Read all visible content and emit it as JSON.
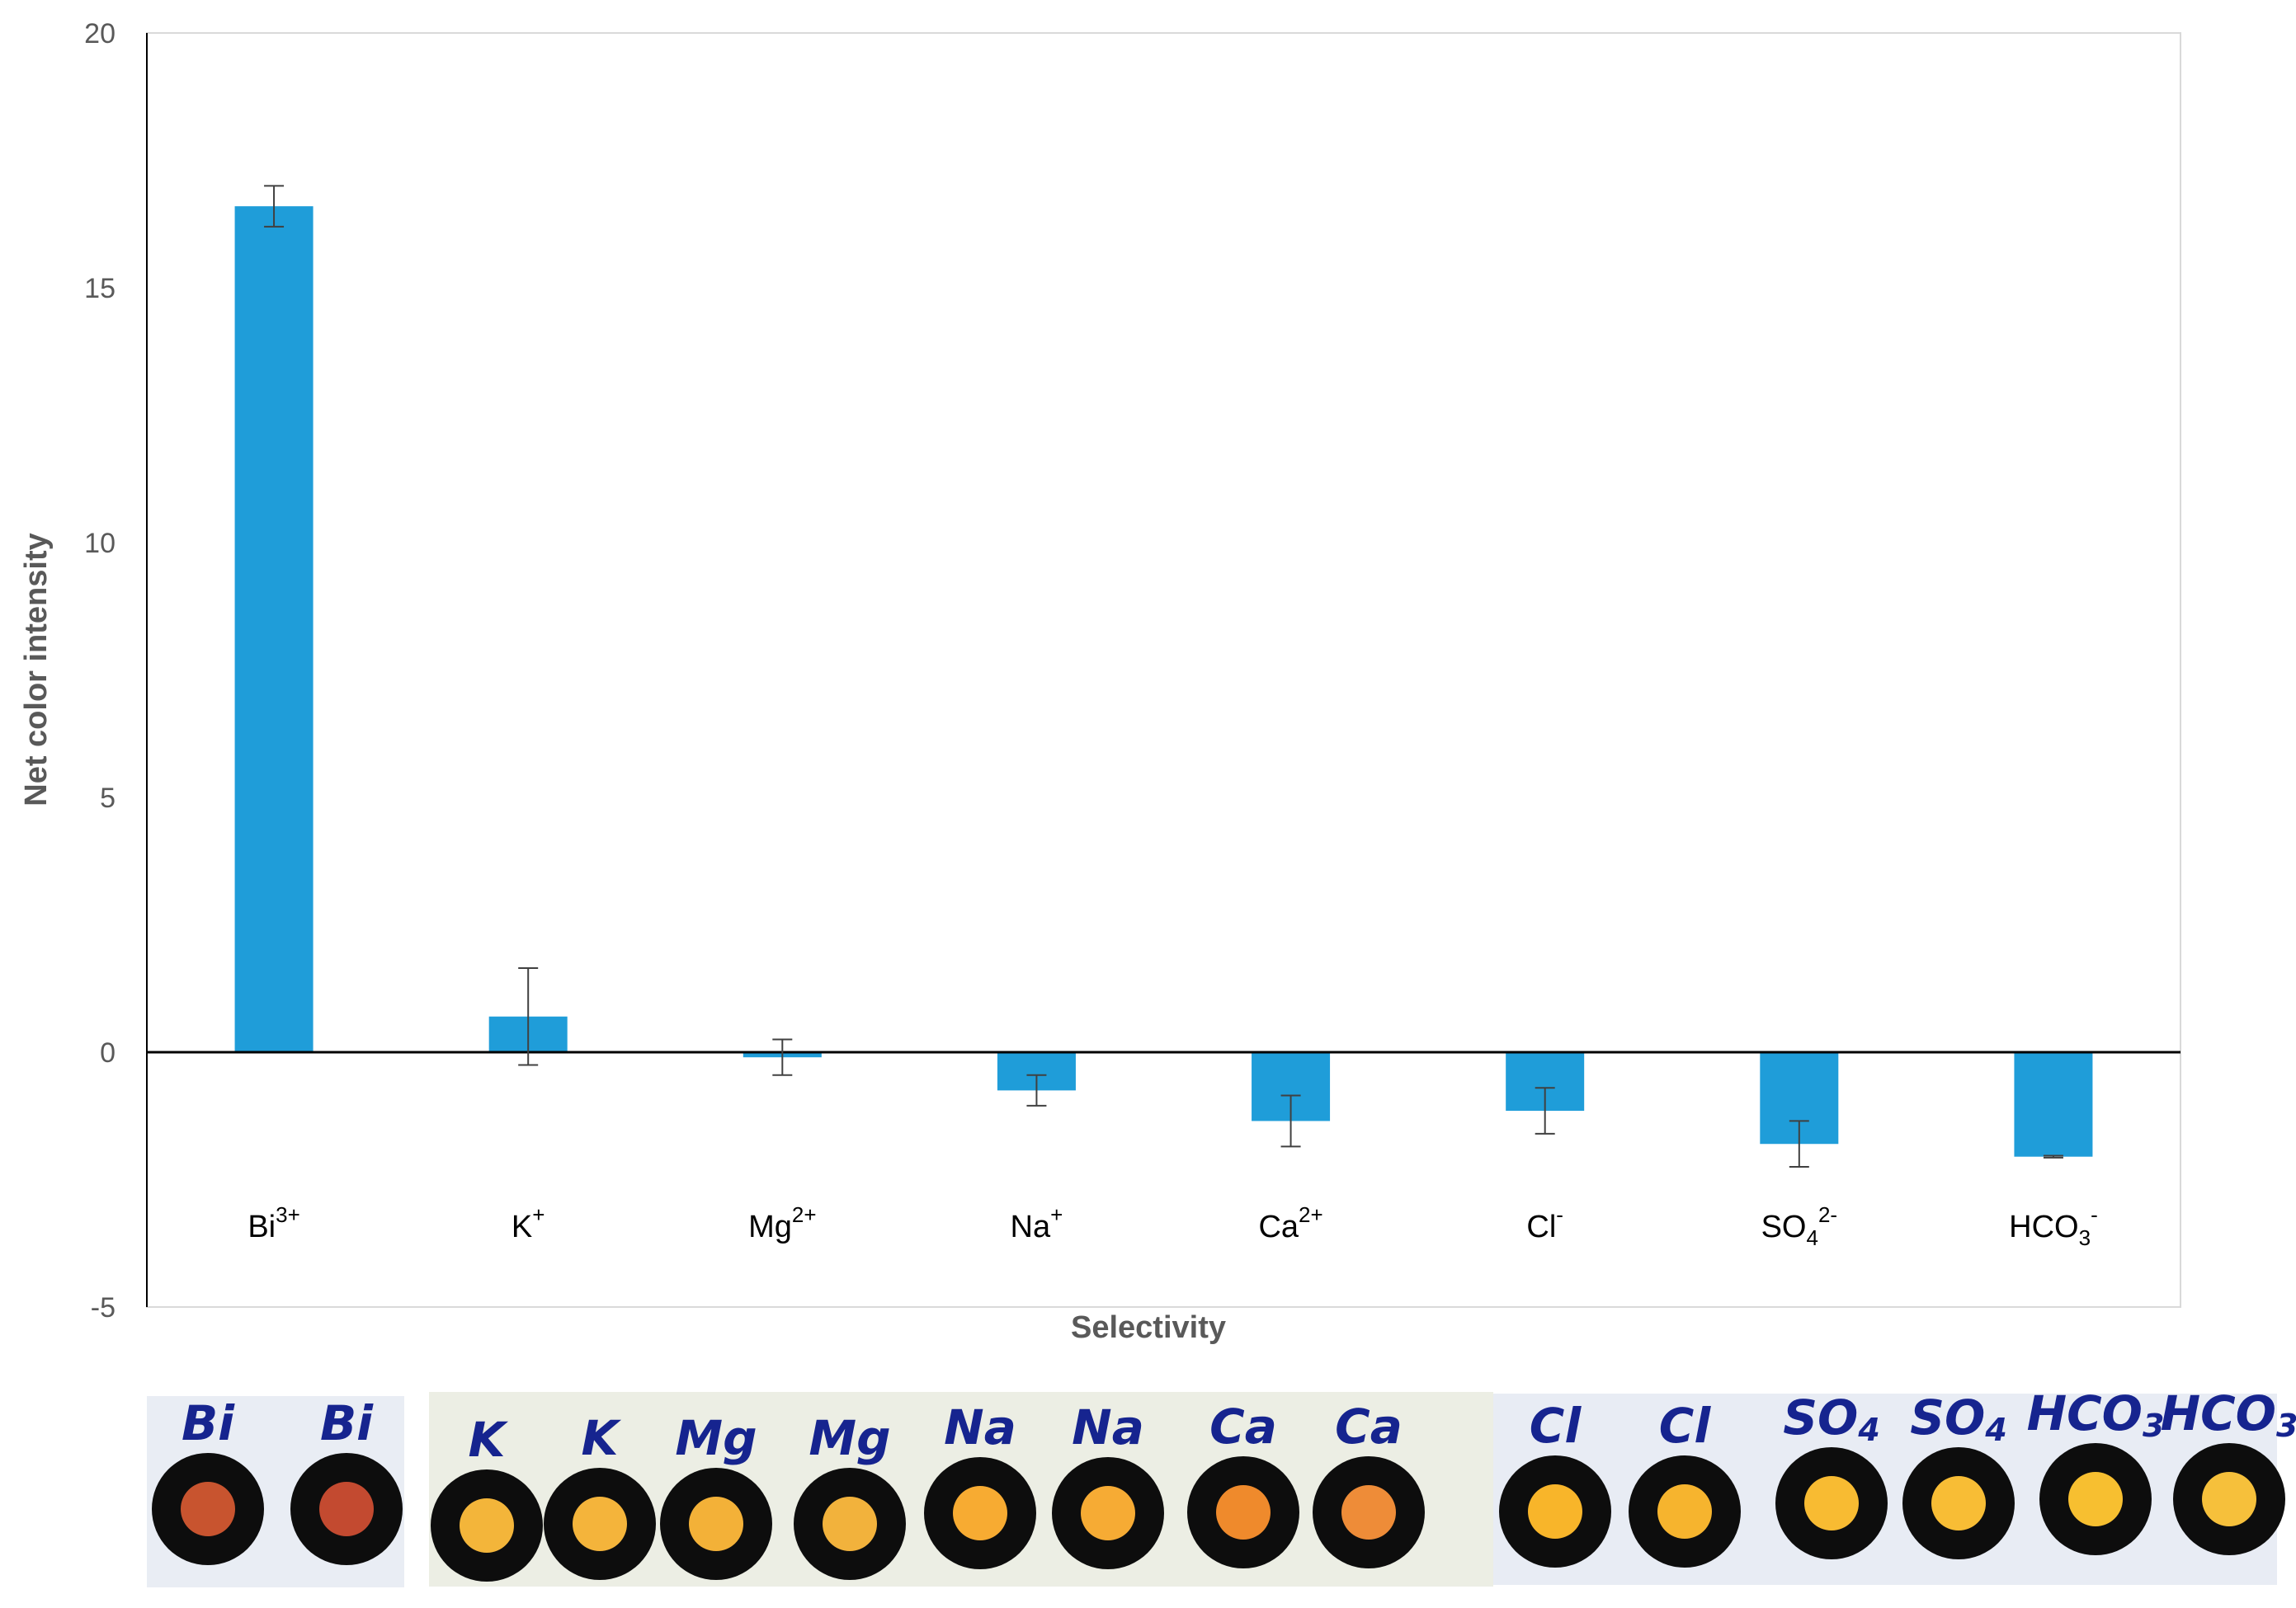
{
  "chart_data": {
    "type": "bar",
    "title": "",
    "xlabel": "Selectivity",
    "ylabel": "Net color intensity",
    "ylim": [
      -5,
      20
    ],
    "yticks": [
      -5,
      0,
      5,
      10,
      15,
      20
    ],
    "grid": false,
    "legend": "none",
    "bar_color": "#1f9dd9",
    "categories": [
      {
        "base": "Bi",
        "sub": "",
        "sup": "3+"
      },
      {
        "base": "K",
        "sub": "",
        "sup": "+"
      },
      {
        "base": "Mg",
        "sub": "",
        "sup": "2+"
      },
      {
        "base": "Na",
        "sub": "",
        "sup": "+"
      },
      {
        "base": "Ca",
        "sub": "",
        "sup": "2+"
      },
      {
        "base": "Cl",
        "sub": "",
        "sup": "-"
      },
      {
        "base": "SO",
        "sub": "4",
        "sup": "2-"
      },
      {
        "base": "HCO",
        "sub": "3",
        "sup": "-"
      }
    ],
    "values": [
      16.6,
      0.7,
      -0.1,
      -0.75,
      -1.35,
      -1.15,
      -1.8,
      -2.05
    ],
    "error": [
      0.4,
      0.95,
      0.35,
      0.3,
      0.5,
      0.45,
      0.45,
      0.02
    ]
  },
  "spot_strip": {
    "labels": [
      "Bi",
      "Bi",
      "K",
      "K",
      "Mg",
      "Mg",
      "Na",
      "Na",
      "Ca",
      "Ca",
      "Cl",
      "Cl",
      "SO4",
      "SO4",
      "HCO3",
      "HCO3"
    ],
    "spot_colors": [
      "#c8542f",
      "#c34a30",
      "#f3b53a",
      "#f4b43b",
      "#f3b138",
      "#f2b23c",
      "#f7ab32",
      "#f6ab34",
      "#ef8a2c",
      "#ee8c38",
      "#f8b52a",
      "#f6b42e",
      "#f8bb32",
      "#f8bd35",
      "#f7bf30",
      "#f6c03b"
    ]
  }
}
